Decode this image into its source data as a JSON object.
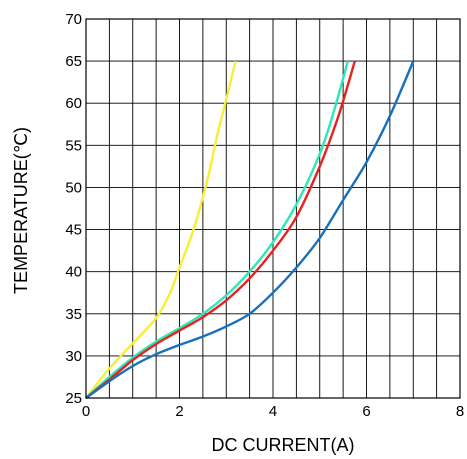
{
  "chart_data": {
    "type": "line",
    "xlabel": "DC CURRENT(A)",
    "ylabel": "TEMPERATURE(℃)",
    "xlim": [
      0,
      8
    ],
    "ylim": [
      25,
      70
    ],
    "x_ticks": [
      "0",
      "2",
      "4",
      "6",
      "8"
    ],
    "y_ticks": [
      "25",
      "30",
      "35",
      "40",
      "45",
      "50",
      "55",
      "60",
      "65",
      "70"
    ],
    "grid": true,
    "legend": "none",
    "series": [
      {
        "color": "#f5f032",
        "x": [
          0,
          0.5,
          1.0,
          1.5,
          1.8,
          2.0,
          2.3,
          2.6,
          2.8,
          3.0,
          3.2
        ],
        "y": [
          25,
          28.5,
          31.5,
          34.5,
          37.5,
          40.5,
          45,
          51,
          56,
          60.5,
          65
        ]
      },
      {
        "color": "#2ee6b8",
        "x": [
          0,
          0.5,
          1.0,
          1.5,
          2.0,
          2.5,
          3.0,
          3.5,
          4.0,
          4.5,
          5.0,
          5.3,
          5.6
        ],
        "y": [
          25,
          27.5,
          29.8,
          31.7,
          33.3,
          35,
          37.2,
          40,
          43.5,
          48,
          54,
          59,
          65
        ]
      },
      {
        "color": "#e8211d",
        "x": [
          0,
          0.5,
          1.0,
          1.5,
          2.0,
          2.5,
          3.0,
          3.5,
          4.0,
          4.5,
          5.0,
          5.4,
          5.75
        ],
        "y": [
          25,
          27.2,
          29.5,
          31.4,
          33,
          34.6,
          36.6,
          39.2,
          42.5,
          46.5,
          52.5,
          58.5,
          65
        ]
      },
      {
        "color": "#1a6fba",
        "x": [
          0,
          0.5,
          1.0,
          1.5,
          2.0,
          2.5,
          3.0,
          3.5,
          4.0,
          4.5,
          5.0,
          5.5,
          6.0,
          6.5,
          7.0
        ],
        "y": [
          25,
          27,
          28.8,
          30.2,
          31.3,
          32.3,
          33.5,
          35,
          37.5,
          40.5,
          44,
          48.5,
          53,
          58.5,
          65
        ]
      }
    ]
  }
}
